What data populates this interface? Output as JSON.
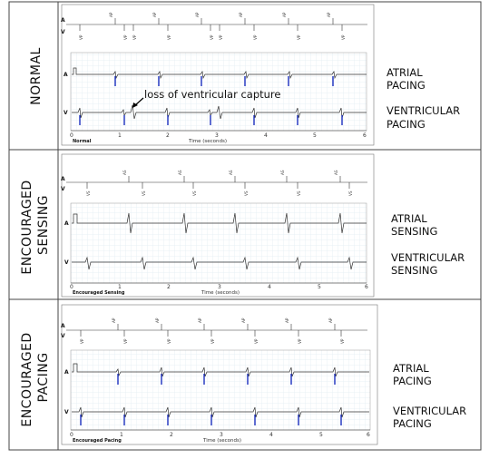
{
  "panels": [
    {
      "id": "normal",
      "side_label": [
        "NORMAL"
      ],
      "right_labels": [
        [
          "ATRIAL",
          "PACING"
        ],
        [
          "VENTRICULAR",
          "PACING"
        ]
      ],
      "mode_label": "Normal",
      "axis_title": "Time (seconds)",
      "ticks": [
        "0",
        "1",
        "2",
        "3",
        "4",
        "5",
        "6"
      ],
      "annotation": "loss of ventricular capture",
      "marker_top": [
        "AP",
        "AP",
        "AP",
        "AP",
        "AP",
        "AP",
        "AP"
      ],
      "marker_bottom": [
        "VP",
        "VP",
        "VP",
        "VP",
        "VP",
        "VP",
        "VP",
        "VP",
        "VP"
      ]
    },
    {
      "id": "encouraged-sensing",
      "side_label": [
        "ENCOURAGED",
        "SENSING"
      ],
      "right_labels": [
        [
          "ATRIAL",
          "SENSING"
        ],
        [
          "VENTRICULAR",
          "SENSING"
        ]
      ],
      "mode_label": "Encouraged Sensing",
      "axis_title": "Time (seconds)",
      "ticks": [
        "0",
        "1",
        "2",
        "3",
        "4",
        "5",
        "6"
      ],
      "marker_top": [
        "AS",
        "AS",
        "AS",
        "AS",
        "AS",
        "AS"
      ],
      "marker_bottom": [
        "VS",
        "VS",
        "VS",
        "VS",
        "VS",
        "VS"
      ]
    },
    {
      "id": "encouraged-pacing",
      "side_label": [
        "ENCOURAGED",
        "PACING"
      ],
      "right_labels": [
        [
          "ATRIAL",
          "PACING"
        ],
        [
          "VENTRICULAR",
          "PACING"
        ]
      ],
      "mode_label": "Encouraged Pacing",
      "axis_title": "Time (seconds)",
      "ticks": [
        "0",
        "1",
        "2",
        "3",
        "4",
        "5",
        "6"
      ],
      "marker_top": [
        "AP",
        "AP",
        "AP",
        "AP",
        "AP",
        "AP",
        "AP"
      ],
      "marker_bottom": [
        "VP",
        "VP",
        "VP",
        "VP",
        "VP",
        "VP",
        "VP"
      ]
    }
  ],
  "colors": {
    "grid": "#d6e6ee",
    "trace": "#333333",
    "pace_spike": "#1b2fbf",
    "border": "#444444"
  }
}
